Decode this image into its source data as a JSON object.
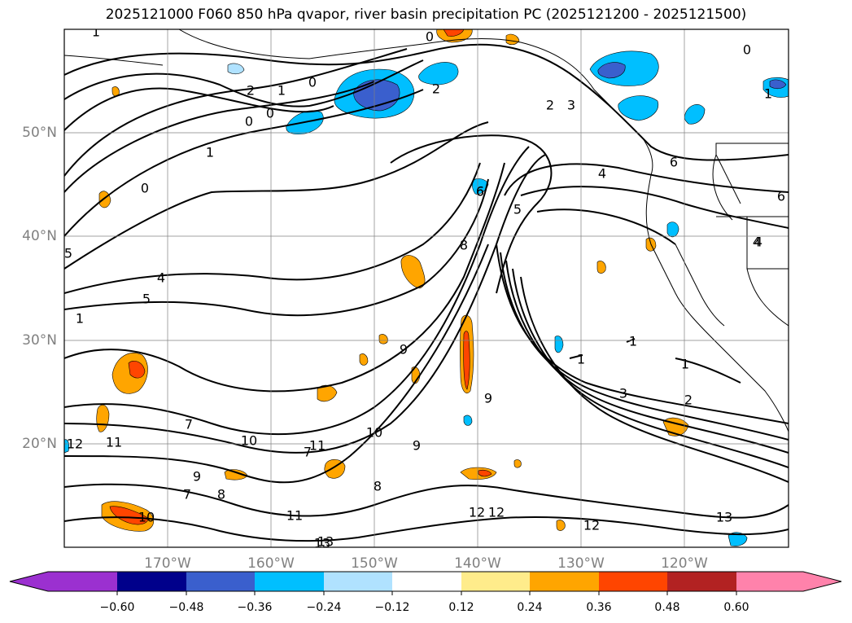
{
  "title": "2025121000 F060 850 hPa qvapor, river basin precipitation PC (2025121200 - 2025121500)",
  "lat_labels": [
    "50°N",
    "40°N",
    "30°N",
    "20°N"
  ],
  "lon_labels": [
    "170°W",
    "160°W",
    "150°W",
    "140°W",
    "130°W",
    "120°W"
  ],
  "colorbar": {
    "colors": [
      "#9b30d0",
      "#00008b",
      "#3a5fcd",
      "#00bfff",
      "#b0e2ff",
      "#ffffff",
      "#ffec8b",
      "#ffa500",
      "#ff4500",
      "#b22222",
      "#ff82ab"
    ],
    "ticks": [
      "−0.60",
      "−0.48",
      "−0.36",
      "−0.24",
      "−0.12",
      "0.12",
      "0.24",
      "0.36",
      "0.48",
      "0.60"
    ]
  },
  "contour_labels": [
    "1",
    "2",
    "1",
    "0",
    "0",
    "1",
    "0",
    "2",
    "3",
    "0",
    "0",
    "4",
    "5",
    "4",
    "5",
    "6",
    "7",
    "8",
    "9",
    "10",
    "11",
    "12",
    "13",
    "7",
    "8",
    "9",
    "10",
    "11",
    "12",
    "13",
    "5",
    "6",
    "7",
    "8",
    "9",
    "9",
    "10",
    "11",
    "12",
    "12",
    "13",
    "4",
    "3",
    "2",
    "1",
    "1",
    "1",
    "0",
    "4",
    "6",
    "6",
    "2",
    "1",
    "1"
  ]
}
